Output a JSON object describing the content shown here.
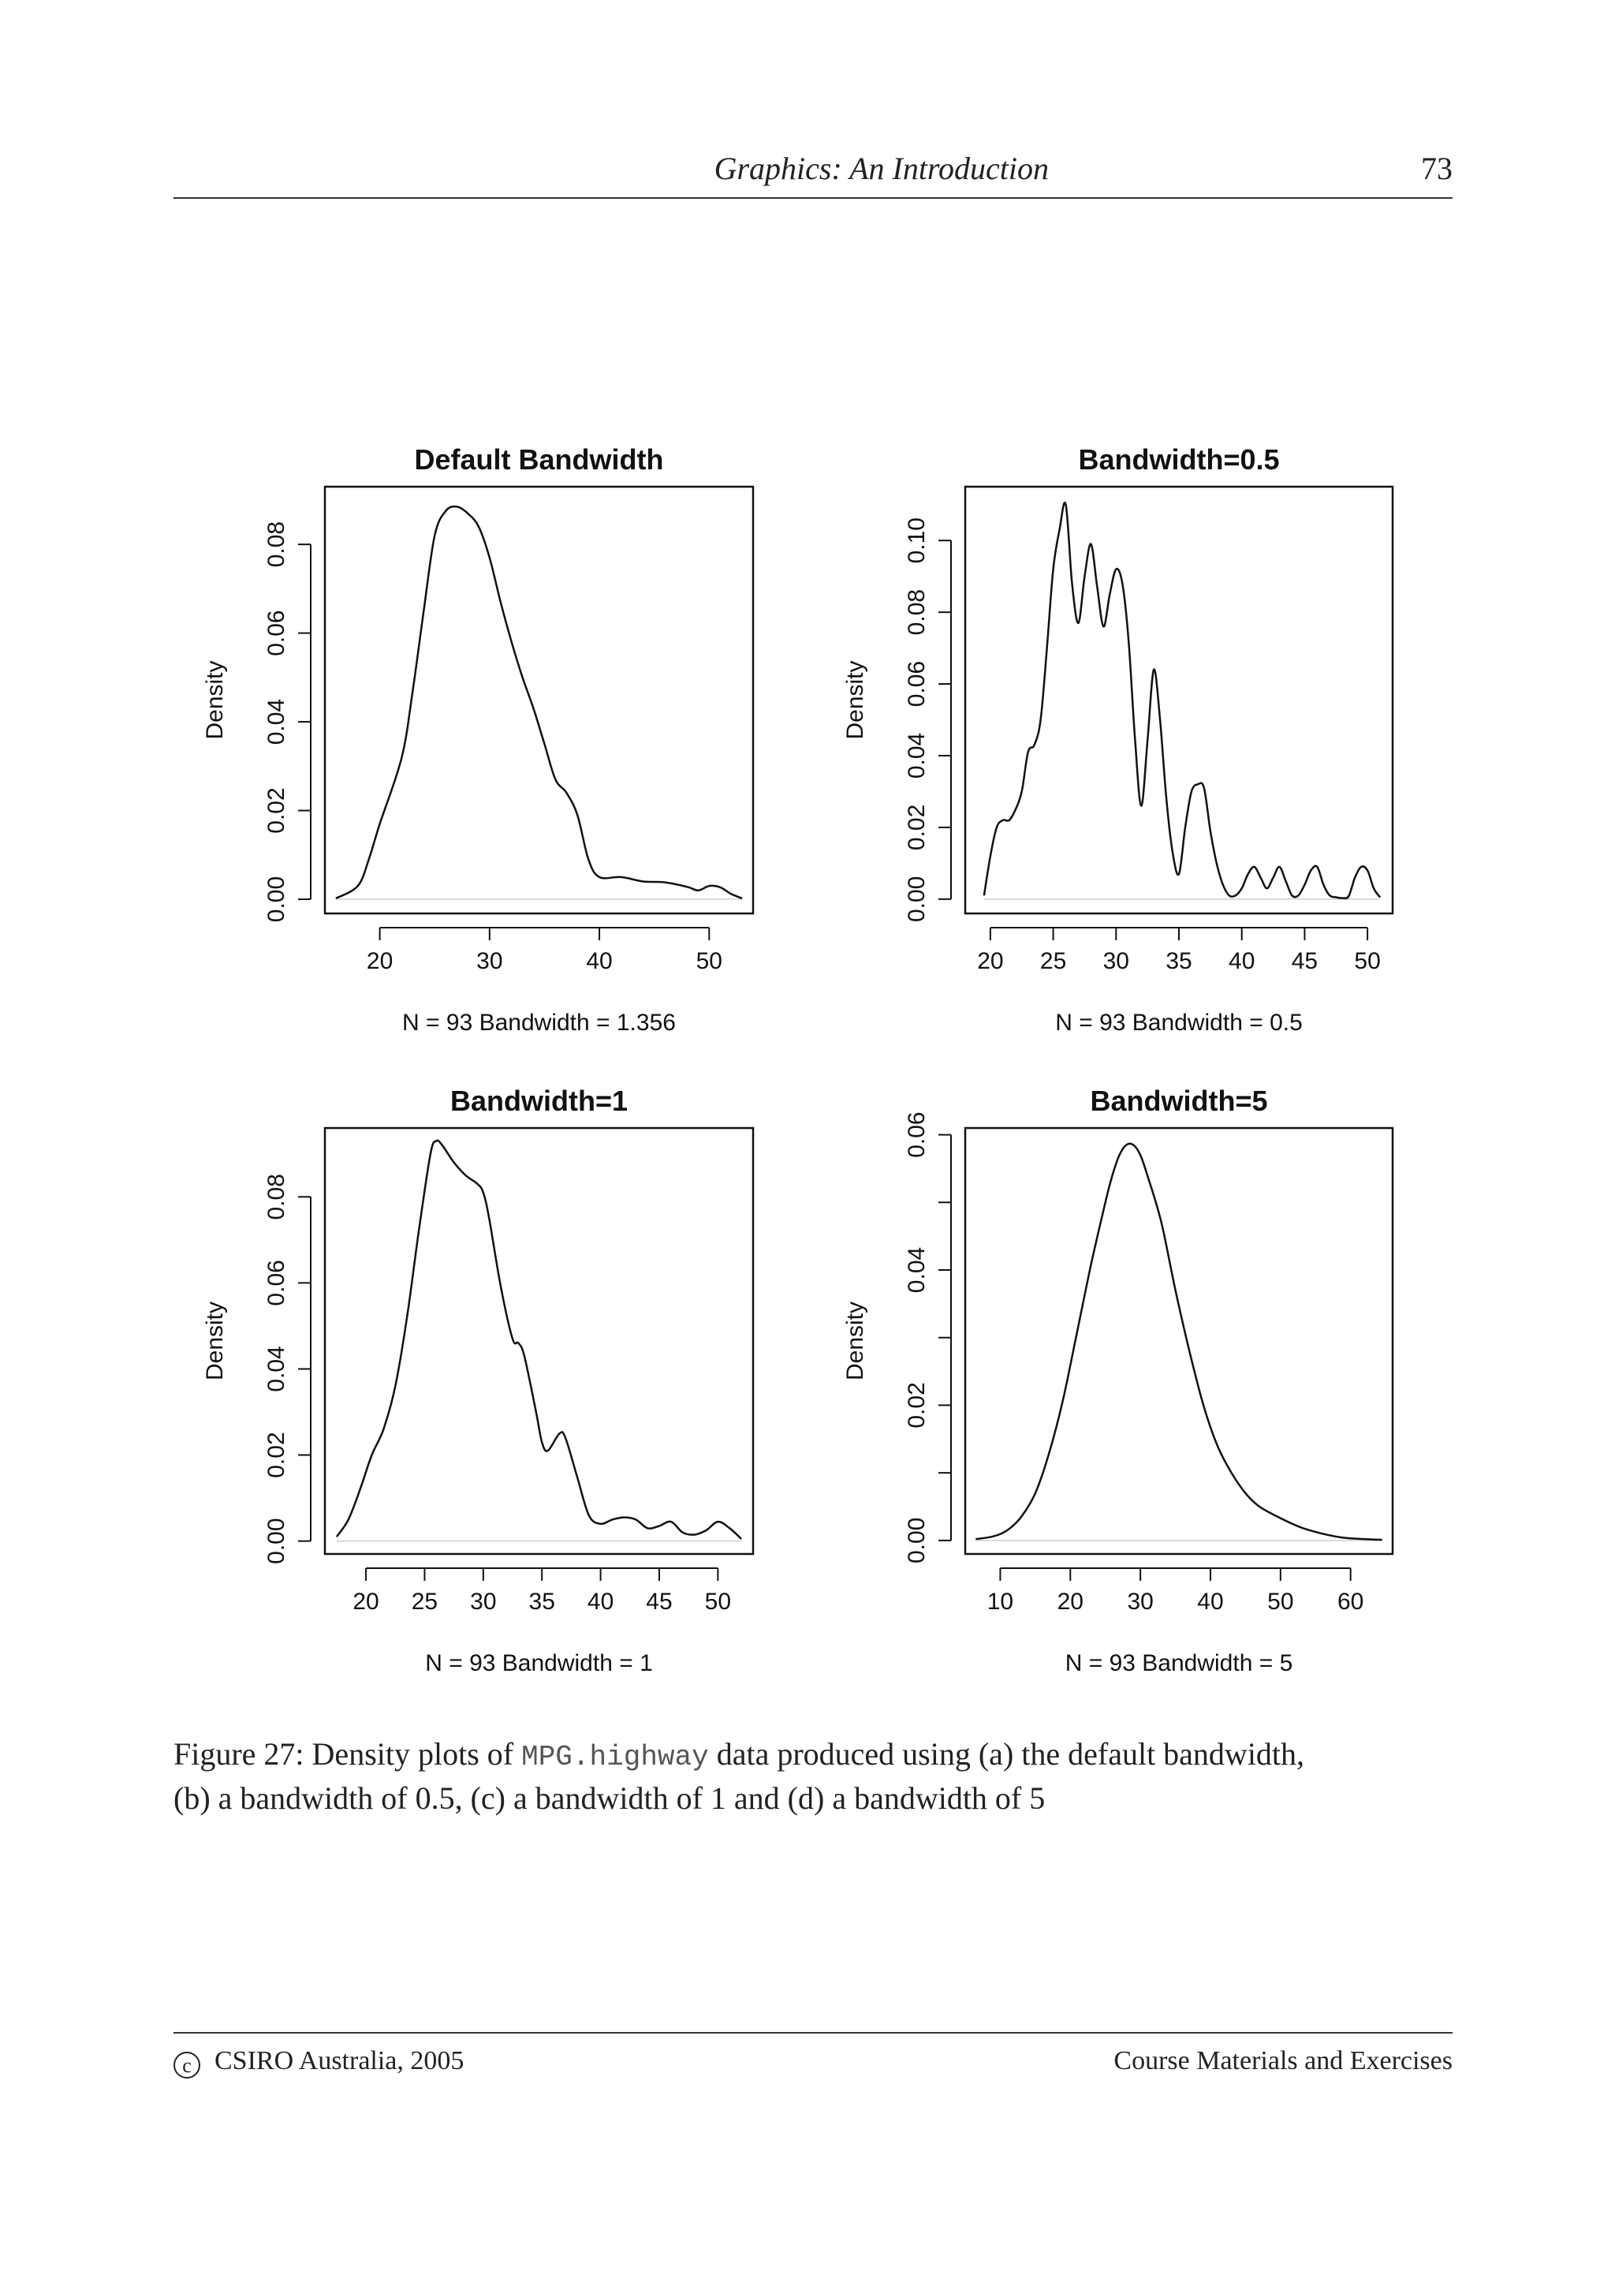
{
  "header": {
    "title": "Graphics: An Introduction",
    "page_number": "73"
  },
  "caption": {
    "prefix": "Figure 27: Density plots of ",
    "code": "MPG.highway",
    "line1_rest": " data produced using (a) the default bandwidth,",
    "line2": "(b) a bandwidth of 0.5, (c) a bandwidth of 1 and (d) a bandwidth of 5"
  },
  "footer": {
    "copyright_symbol": "c",
    "left": "CSIRO Australia, 2005",
    "right": "Course Materials and Exercises"
  },
  "chart_data": [
    {
      "type": "line",
      "title": "Default Bandwidth",
      "xlabel": "N = 93   Bandwidth = 1.356",
      "ylabel": "Density",
      "xlim": [
        15,
        54
      ],
      "ylim": [
        -0.0032,
        0.093
      ],
      "xticks": [
        20,
        30,
        40,
        50
      ],
      "xtick_labels": [
        "20",
        "30",
        "40",
        "50"
      ],
      "yticks": [
        0,
        0.02,
        0.04,
        0.06,
        0.08
      ],
      "ytick_labels": [
        "0.00",
        "0.02",
        "0.04",
        "0.06",
        "0.08"
      ],
      "grid": false,
      "series": [
        {
          "x": [
            16,
            18,
            19,
            20,
            22,
            23,
            24,
            25,
            26,
            27,
            28,
            29,
            30,
            31,
            32,
            33,
            34,
            35,
            36,
            37,
            38,
            39,
            40,
            42,
            44,
            46,
            48,
            49,
            50,
            51,
            52,
            53
          ],
          "y": [
            0.0002,
            0.003,
            0.009,
            0.017,
            0.032,
            0.047,
            0.065,
            0.082,
            0.0875,
            0.0885,
            0.087,
            0.084,
            0.077,
            0.067,
            0.058,
            0.05,
            0.043,
            0.035,
            0.027,
            0.024,
            0.019,
            0.009,
            0.005,
            0.005,
            0.004,
            0.0038,
            0.0028,
            0.002,
            0.003,
            0.0027,
            0.0012,
            0.0002
          ]
        }
      ]
    },
    {
      "type": "line",
      "title": "Bandwidth=0.5",
      "xlabel": "N = 93   Bandwidth = 0.5",
      "ylabel": "Density",
      "xlim": [
        18,
        52
      ],
      "ylim": [
        -0.004,
        0.115
      ],
      "xticks": [
        20,
        25,
        30,
        35,
        40,
        45,
        50
      ],
      "xtick_labels": [
        "20",
        "25",
        "30",
        "35",
        "40",
        "45",
        "50"
      ],
      "yticks": [
        0,
        0.02,
        0.04,
        0.06,
        0.08,
        0.1
      ],
      "ytick_labels": [
        "0.00",
        "0.02",
        "0.04",
        "0.06",
        "0.08",
        "0.10"
      ],
      "grid": false,
      "series": [
        {
          "x": [
            19.5,
            20,
            20.5,
            21,
            21.5,
            22,
            22.5,
            23,
            23.5,
            24,
            24.5,
            25,
            25.5,
            26,
            26.5,
            27,
            27.5,
            28,
            28.5,
            29,
            29.5,
            30,
            30.5,
            31,
            31.5,
            32,
            32.5,
            33,
            33.5,
            34,
            34.5,
            35,
            35.5,
            36,
            36.5,
            37,
            37.5,
            38,
            38.5,
            39,
            39.5,
            40,
            40.5,
            41,
            41.5,
            42,
            42.5,
            43,
            43.5,
            44,
            44.5,
            45,
            45.5,
            46,
            46.5,
            47,
            47.5,
            48,
            48.5,
            49,
            49.5,
            50,
            50.5,
            51
          ],
          "y": [
            0.001,
            0.012,
            0.02,
            0.022,
            0.022,
            0.025,
            0.03,
            0.041,
            0.043,
            0.05,
            0.07,
            0.092,
            0.103,
            0.11,
            0.088,
            0.077,
            0.09,
            0.099,
            0.087,
            0.076,
            0.085,
            0.092,
            0.088,
            0.072,
            0.045,
            0.026,
            0.044,
            0.064,
            0.05,
            0.028,
            0.013,
            0.007,
            0.02,
            0.03,
            0.032,
            0.031,
            0.019,
            0.01,
            0.004,
            0.001,
            0.001,
            0.003,
            0.007,
            0.009,
            0.006,
            0.003,
            0.006,
            0.009,
            0.005,
            0.001,
            0.001,
            0.004,
            0.008,
            0.009,
            0.004,
            0.001,
            0.0005,
            0.0003,
            0.0008,
            0.006,
            0.009,
            0.008,
            0.003,
            0.0005
          ]
        }
      ]
    },
    {
      "type": "line",
      "title": "Bandwidth=1",
      "xlabel": "N = 93   Bandwidth = 1",
      "ylabel": "Density",
      "xlim": [
        16.5,
        53
      ],
      "ylim": [
        -0.003,
        0.096
      ],
      "xticks": [
        20,
        25,
        30,
        35,
        40,
        45,
        50
      ],
      "xtick_labels": [
        "20",
        "25",
        "30",
        "35",
        "40",
        "45",
        "50"
      ],
      "yticks": [
        0,
        0.02,
        0.04,
        0.06,
        0.08
      ],
      "ytick_labels": [
        "0.00",
        "0.02",
        "0.04",
        "0.06",
        "0.08"
      ],
      "grid": false,
      "series": [
        {
          "x": [
            17.5,
            18.5,
            19.5,
            20.5,
            21.5,
            22.5,
            23.5,
            24.5,
            25.5,
            26,
            26.5,
            27.5,
            28.5,
            29.5,
            30,
            30.5,
            31.5,
            32.5,
            33,
            33.5,
            34.5,
            35,
            35.5,
            36.5,
            37,
            38,
            39,
            40,
            41,
            42,
            43,
            44,
            45,
            46,
            47,
            48,
            49,
            50,
            51,
            52
          ],
          "y": [
            0.001,
            0.005,
            0.012,
            0.02,
            0.026,
            0.036,
            0.052,
            0.072,
            0.09,
            0.093,
            0.092,
            0.088,
            0.085,
            0.083,
            0.081,
            0.075,
            0.059,
            0.047,
            0.046,
            0.043,
            0.03,
            0.023,
            0.021,
            0.025,
            0.024,
            0.015,
            0.006,
            0.004,
            0.005,
            0.0055,
            0.005,
            0.003,
            0.0035,
            0.0045,
            0.002,
            0.0015,
            0.0025,
            0.0045,
            0.003,
            0.0005
          ]
        }
      ]
    },
    {
      "type": "line",
      "title": "Bandwidth=5",
      "xlabel": "N = 93   Bandwidth = 5",
      "ylabel": "Density",
      "xlim": [
        5,
        66
      ],
      "ylim": [
        -0.002,
        0.061
      ],
      "xticks": [
        10,
        20,
        30,
        40,
        50,
        60
      ],
      "xtick_labels": [
        "10",
        "20",
        "30",
        "40",
        "50",
        "60"
      ],
      "yticks": [
        0,
        0.01,
        0.02,
        0.03,
        0.04,
        0.05,
        0.06
      ],
      "ytick_labels": [
        "0.00",
        "",
        "0.02",
        "",
        "0.04",
        "",
        "0.06"
      ],
      "grid": false,
      "series": [
        {
          "x": [
            6.5,
            9,
            11,
            13,
            15,
            17,
            19,
            21,
            23,
            25,
            26,
            27,
            28,
            29,
            30,
            31,
            33,
            35,
            37,
            39,
            41,
            43,
            45,
            47,
            50,
            53,
            56,
            59,
            62,
            64.5
          ],
          "y": [
            0.0002,
            0.0006,
            0.0015,
            0.0035,
            0.007,
            0.013,
            0.021,
            0.031,
            0.041,
            0.05,
            0.054,
            0.057,
            0.0585,
            0.0585,
            0.057,
            0.054,
            0.047,
            0.037,
            0.028,
            0.02,
            0.014,
            0.01,
            0.007,
            0.005,
            0.0033,
            0.0019,
            0.001,
            0.0004,
            0.0002,
            0.0001
          ]
        }
      ]
    }
  ]
}
